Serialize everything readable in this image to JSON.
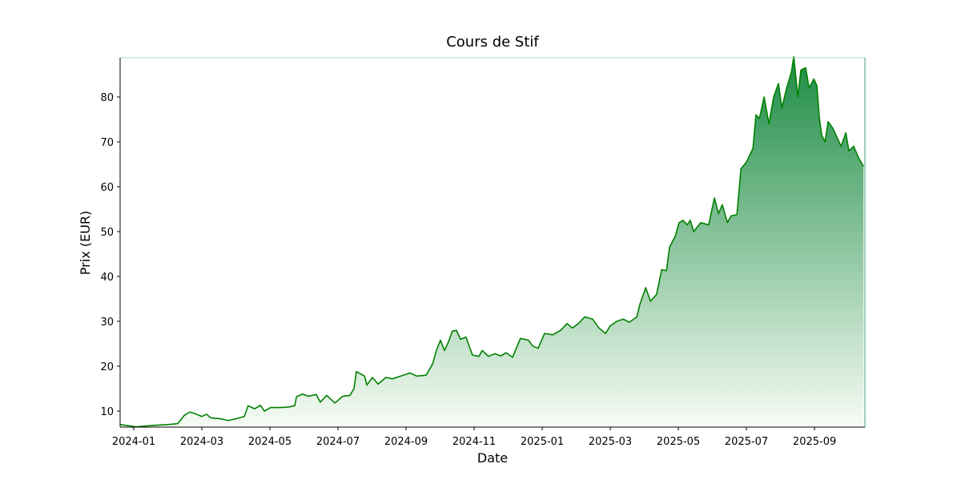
{
  "chart_data": {
    "type": "line",
    "title": "Cours de Stif",
    "x_label": "Date",
    "y_label": "Prix (EUR)",
    "color": "#008000",
    "fill_gradient": [
      "#1e8c45",
      "#f7fcf5"
    ],
    "x": [
      -0.4,
      0.07,
      0.54,
      1.01,
      1.29,
      1.48,
      1.65,
      1.84,
      2.0,
      2.14,
      2.26,
      2.54,
      2.78,
      3.01,
      3.25,
      3.36,
      3.55,
      3.72,
      3.84,
      4.02,
      4.31,
      4.54,
      4.73,
      4.78,
      4.96,
      5.13,
      5.36,
      5.48,
      5.67,
      5.91,
      6.14,
      6.35,
      6.47,
      6.54,
      6.78,
      6.85,
      7.01,
      7.18,
      7.41,
      7.6,
      7.84,
      8.12,
      8.31,
      8.59,
      8.78,
      8.89,
      9.01,
      9.13,
      9.25,
      9.36,
      9.48,
      9.6,
      9.76,
      9.95,
      10.14,
      10.24,
      10.42,
      10.61,
      10.78,
      10.94,
      11.13,
      11.36,
      11.6,
      11.72,
      11.88,
      12.07,
      12.31,
      12.54,
      12.73,
      12.89,
      13.06,
      13.25,
      13.48,
      13.67,
      13.86,
      14.0,
      14.19,
      14.38,
      14.56,
      14.78,
      14.87,
      15.04,
      15.18,
      15.36,
      15.51,
      15.65,
      15.74,
      15.91,
      16.02,
      16.14,
      16.26,
      16.35,
      16.45,
      16.66,
      16.89,
      17.06,
      17.18,
      17.29,
      17.44,
      17.55,
      17.72,
      17.84,
      18.0,
      18.19,
      18.28,
      18.38,
      18.52,
      18.66,
      18.8,
      18.94,
      19.04,
      19.18,
      19.32,
      19.39,
      19.51,
      19.6,
      19.74,
      19.84,
      19.98,
      20.07,
      20.14,
      20.21,
      20.31,
      20.4,
      20.54,
      20.66,
      20.78,
      20.92,
      21.01,
      21.15,
      21.29,
      21.44
    ],
    "values": [
      7.0,
      6.5,
      6.8,
      7.0,
      7.2,
      9.0,
      9.8,
      9.3,
      8.8,
      9.3,
      8.5,
      8.3,
      7.9,
      8.3,
      8.8,
      11.2,
      10.5,
      11.3,
      10.0,
      10.8,
      10.8,
      10.9,
      11.2,
      13.2,
      13.8,
      13.3,
      13.7,
      12.0,
      13.5,
      11.8,
      13.3,
      13.5,
      15.0,
      18.8,
      17.8,
      15.8,
      17.5,
      16.0,
      17.5,
      17.2,
      17.8,
      18.5,
      17.8,
      18.0,
      20.5,
      23.5,
      25.8,
      23.5,
      25.5,
      27.8,
      28.0,
      26.0,
      26.5,
      22.5,
      22.2,
      23.5,
      22.2,
      22.8,
      22.3,
      23.0,
      22.0,
      26.2,
      25.8,
      24.5,
      24.0,
      27.3,
      27.0,
      28.0,
      29.5,
      28.5,
      29.5,
      31.0,
      30.5,
      28.5,
      27.3,
      29.0,
      30.0,
      30.5,
      29.8,
      31.0,
      33.8,
      37.5,
      34.5,
      36.0,
      41.5,
      41.3,
      46.5,
      49.0,
      52.0,
      52.5,
      51.5,
      52.5,
      50.0,
      52.0,
      51.5,
      57.5,
      54.0,
      56.0,
      52.0,
      53.5,
      53.8,
      64.0,
      65.5,
      68.5,
      76.0,
      75.2,
      80.0,
      74.0,
      80.0,
      83.0,
      77.5,
      82.0,
      85.5,
      89.0,
      80.0,
      86.0,
      86.5,
      82.0,
      84.0,
      82.5,
      75.5,
      71.5,
      70.0,
      74.5,
      73.0,
      71.0,
      69.0,
      72.0,
      68.0,
      69.0,
      66.5,
      64.5
    ],
    "xlim": [
      -0.4,
      21.48
    ],
    "xticks": [
      {
        "value": 0,
        "label": "2024-01"
      },
      {
        "value": 2,
        "label": "2024-03"
      },
      {
        "value": 4,
        "label": "2024-05"
      },
      {
        "value": 6,
        "label": "2024-07"
      },
      {
        "value": 8,
        "label": "2024-09"
      },
      {
        "value": 10,
        "label": "2024-11"
      },
      {
        "value": 12,
        "label": "2025-01"
      },
      {
        "value": 14,
        "label": "2025-03"
      },
      {
        "value": 16,
        "label": "2025-05"
      },
      {
        "value": 18,
        "label": "2025-07"
      },
      {
        "value": 20,
        "label": "2025-09"
      }
    ],
    "ylim": [
      6.43,
      88.75
    ],
    "yticks": [
      10,
      20,
      30,
      40,
      50,
      60,
      70,
      80
    ],
    "grid": false
  }
}
